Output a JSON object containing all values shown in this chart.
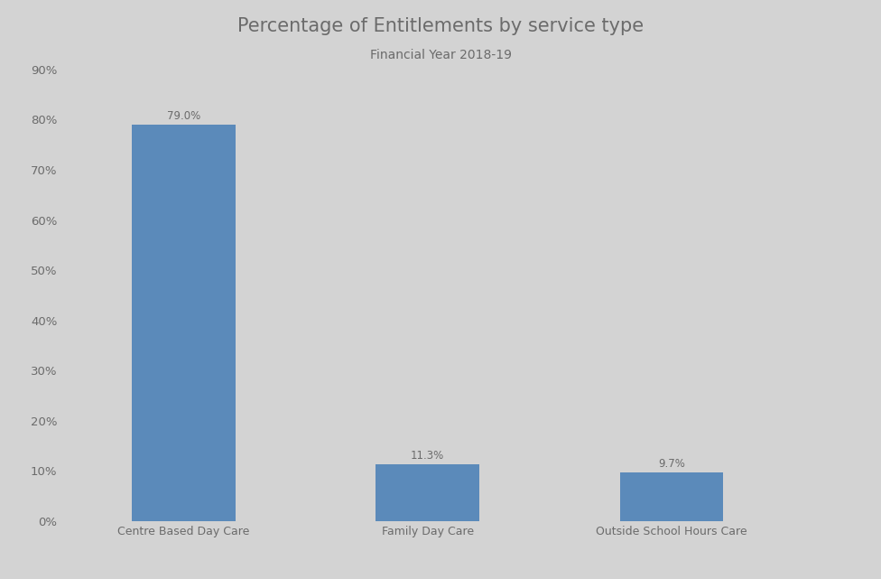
{
  "title": "Percentage of Entitlements by service type",
  "subtitle": "Financial Year 2018-19",
  "categories": [
    "Centre Based Day Care",
    "Family Day Care",
    "Outside School Hours Care"
  ],
  "values": [
    79.0,
    11.3,
    9.7
  ],
  "bar_color": "#5b8aba",
  "background_color": "#d3d3d3",
  "title_fontsize": 15,
  "subtitle_fontsize": 10,
  "label_fontsize": 9,
  "tick_fontsize": 9.5,
  "bar_label_fontsize": 8.5,
  "ylim": [
    0,
    90
  ],
  "yticks": [
    0,
    10,
    20,
    30,
    40,
    50,
    60,
    70,
    80,
    90
  ],
  "ytick_labels": [
    "0%",
    "10%",
    "20%",
    "30%",
    "40%",
    "50%",
    "60%",
    "70%",
    "80%",
    "90%"
  ],
  "text_color": "#6b6b6b"
}
